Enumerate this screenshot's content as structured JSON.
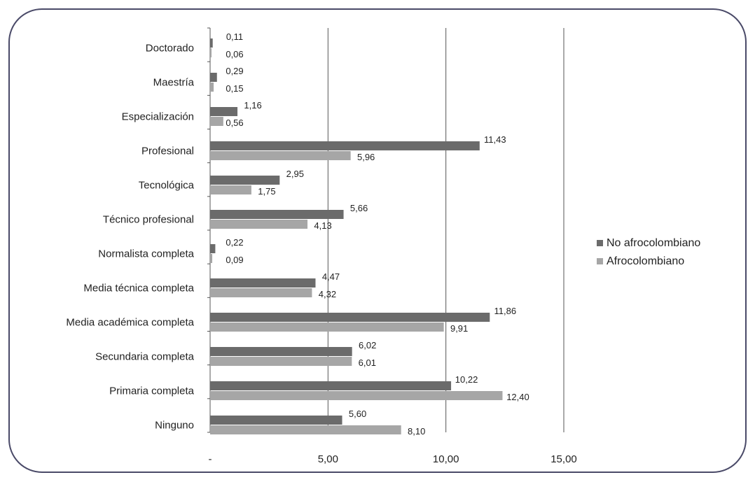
{
  "chart_data": {
    "type": "bar",
    "orientation": "horizontal",
    "categories": [
      "Doctorado",
      "Maestría",
      "Especialización",
      "Profesional",
      "Tecnológica",
      "Técnico profesional",
      "Normalista completa",
      "Media técnica completa",
      "Media académica completa",
      "Secundaria completa",
      "Primaria completa",
      "Ninguno"
    ],
    "series": [
      {
        "name": "No afrocolombiano",
        "color": "#6b6b6b",
        "values": [
          0.11,
          0.29,
          1.16,
          11.43,
          2.95,
          5.66,
          0.22,
          4.47,
          11.86,
          6.02,
          10.22,
          5.6
        ],
        "labels": [
          "0,11",
          "0,29",
          "1,16",
          "11,43",
          "2,95",
          "5,66",
          "0,22",
          "4,47",
          "11,86",
          "6,02",
          "10,22",
          "5,60"
        ]
      },
      {
        "name": "Afrocolombiano",
        "color": "#a6a6a6",
        "values": [
          0.06,
          0.15,
          0.56,
          5.96,
          1.75,
          4.13,
          0.09,
          4.32,
          9.91,
          6.01,
          12.4,
          8.1
        ],
        "labels": [
          "0,06",
          "0,15",
          "0,56",
          "5,96",
          "1,75",
          "4,13",
          "0,09",
          "4,32",
          "9,91",
          "6,01",
          "12,40",
          "8,10"
        ]
      }
    ],
    "xlim": [
      0,
      15
    ],
    "xticks": [
      0,
      5,
      10,
      15
    ],
    "xtick_labels": [
      "-",
      "5,00",
      "10,00",
      "15,00"
    ],
    "grid": "vertical",
    "legend_position": "right"
  }
}
